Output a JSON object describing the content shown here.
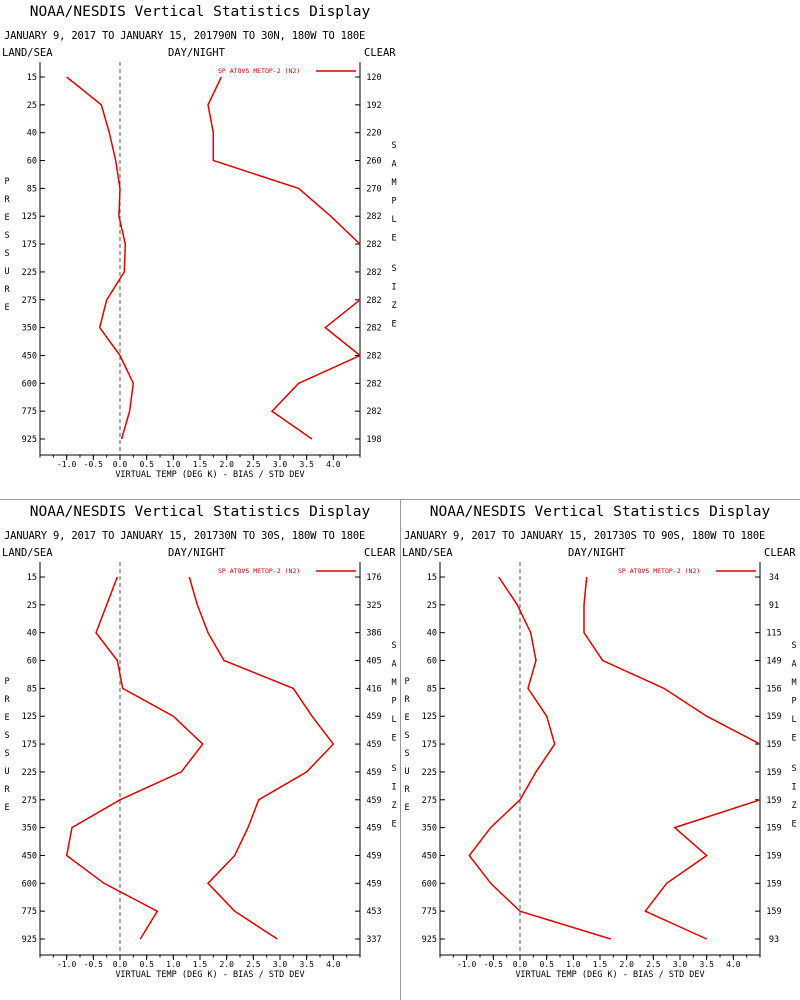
{
  "panels": [
    {
      "title": "NOAA/NESDIS Vertical Statistics Display",
      "subtitle": "JANUARY 9, 2017 TO JANUARY 15, 201790N TO 30N, 180W TO 180E",
      "left_header": "LAND/SEA",
      "center_header": "DAY/NIGHT",
      "right_header": "CLEAR",
      "legend": "SP ATOVS METOP-2 (N2)",
      "xlabel": "VIRTUAL TEMP (DEG K) - BIAS / STD DEV",
      "ylabel": "PRESSURE",
      "right_axis_label": "SAMPLE SIZE",
      "colors": {
        "series": "#dd0000",
        "axis": "#000000",
        "zero_line": "#555555"
      }
    },
    {
      "title": "NOAA/NESDIS Vertical Statistics Display",
      "subtitle": "JANUARY 9, 2017 TO JANUARY 15, 201730N TO 30S, 180W TO 180E",
      "left_header": "LAND/SEA",
      "center_header": "DAY/NIGHT",
      "right_header": "CLEAR",
      "legend": "SP ATOVS METOP-2 (N2)",
      "xlabel": "VIRTUAL TEMP (DEG K) - BIAS / STD DEV",
      "ylabel": "PRESSURE",
      "right_axis_label": "SAMPLE SIZE",
      "colors": {
        "series": "#dd0000",
        "axis": "#000000",
        "zero_line": "#555555"
      }
    },
    {
      "title": "NOAA/NESDIS Vertical Statistics Display",
      "subtitle": "JANUARY 9, 2017 TO JANUARY 15, 201730S TO 90S, 180W TO 180E",
      "left_header": "LAND/SEA",
      "center_header": "DAY/NIGHT",
      "right_header": "CLEAR",
      "legend": "SP ATOVS METOP-2 (N2)",
      "xlabel": "VIRTUAL TEMP (DEG K) - BIAS / STD DEV",
      "ylabel": "PRESSURE",
      "right_axis_label": "SAMPLE SIZE",
      "colors": {
        "series": "#dd0000",
        "axis": "#000000",
        "zero_line": "#555555"
      }
    }
  ],
  "chart_data": [
    {
      "type": "line",
      "xlim": [
        -1.5,
        4.5
      ],
      "xticks": [
        "-1.0",
        "-0.5",
        "0.0",
        "0.5",
        "1.0",
        "1.5",
        "2.0",
        "2.5",
        "3.0",
        "3.5",
        "4.0"
      ],
      "pressure_levels": [
        "15",
        "25",
        "40",
        "60",
        "85",
        "125",
        "175",
        "225",
        "275",
        "350",
        "450",
        "600",
        "775",
        "925"
      ],
      "sample_size": [
        "120",
        "192",
        "220",
        "260",
        "270",
        "282",
        "282",
        "282",
        "282",
        "282",
        "282",
        "282",
        "282",
        "198"
      ],
      "series": [
        {
          "name": "SP ATOVS METOP-2 (N2)",
          "stat": "bias",
          "values": [
            -1.0,
            -0.35,
            -0.2,
            -0.08,
            0.0,
            -0.02,
            0.1,
            0.08,
            -0.25,
            -0.38,
            0.0,
            0.25,
            0.18,
            0.03
          ]
        },
        {
          "name": "SP ATOVS METOP-2 (N2)",
          "stat": "std_dev",
          "values": [
            1.9,
            1.65,
            1.75,
            1.75,
            3.35,
            3.95,
            4.5,
            4.5,
            4.5,
            3.85,
            4.5,
            3.35,
            2.85,
            3.6
          ]
        }
      ]
    },
    {
      "type": "line",
      "xlim": [
        -1.5,
        4.5
      ],
      "xticks": [
        "-1.0",
        "-0.5",
        "0.0",
        "0.5",
        "1.0",
        "1.5",
        "2.0",
        "2.5",
        "3.0",
        "3.5",
        "4.0"
      ],
      "pressure_levels": [
        "15",
        "25",
        "40",
        "60",
        "85",
        "125",
        "175",
        "225",
        "275",
        "350",
        "450",
        "600",
        "775",
        "925"
      ],
      "sample_size": [
        "176",
        "325",
        "386",
        "405",
        "416",
        "459",
        "459",
        "459",
        "459",
        "459",
        "459",
        "459",
        "453",
        "337"
      ],
      "series": [
        {
          "name": "SP ATOVS METOP-2 (N2)",
          "stat": "bias",
          "values": [
            -0.05,
            -0.25,
            -0.45,
            -0.05,
            0.05,
            1.0,
            1.55,
            1.15,
            0.0,
            -0.9,
            -1.0,
            -0.3,
            0.7,
            0.38
          ]
        },
        {
          "name": "SP ATOVS METOP-2 (N2)",
          "stat": "std_dev",
          "values": [
            1.3,
            1.45,
            1.65,
            1.95,
            3.25,
            3.6,
            4.0,
            3.5,
            2.6,
            2.4,
            2.15,
            1.65,
            2.15,
            2.95
          ]
        }
      ]
    },
    {
      "type": "line",
      "xlim": [
        -1.5,
        4.5
      ],
      "xticks": [
        "-1.0",
        "-0.5",
        "0.0",
        "0.5",
        "1.0",
        "1.5",
        "2.0",
        "2.5",
        "3.0",
        "3.5",
        "4.0"
      ],
      "pressure_levels": [
        "15",
        "25",
        "40",
        "60",
        "85",
        "125",
        "175",
        "225",
        "275",
        "350",
        "450",
        "600",
        "775",
        "925"
      ],
      "sample_size": [
        "34",
        "91",
        "115",
        "149",
        "156",
        "159",
        "159",
        "159",
        "159",
        "159",
        "159",
        "159",
        "159",
        "93"
      ],
      "series": [
        {
          "name": "SP ATOVS METOP-2 (N2)",
          "stat": "bias",
          "values": [
            -0.4,
            -0.05,
            0.2,
            0.3,
            0.15,
            0.5,
            0.65,
            0.3,
            0.0,
            -0.55,
            -0.95,
            -0.55,
            0.0,
            1.7
          ]
        },
        {
          "name": "SP ATOVS METOP-2 (N2)",
          "stat": "std_dev",
          "values": [
            1.25,
            1.2,
            1.2,
            1.55,
            2.7,
            3.5,
            4.5,
            4.5,
            4.5,
            2.9,
            3.5,
            2.75,
            2.35,
            3.5
          ]
        }
      ]
    }
  ]
}
